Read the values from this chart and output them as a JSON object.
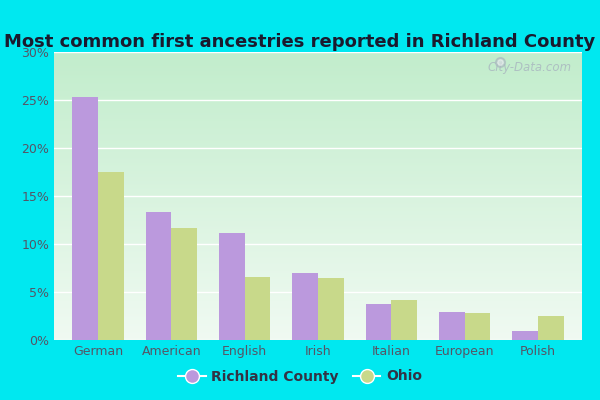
{
  "title": "Most common first ancestries reported in Richland County",
  "categories": [
    "German",
    "American",
    "English",
    "Irish",
    "Italian",
    "European",
    "Polish"
  ],
  "richland_values": [
    25.3,
    13.3,
    11.1,
    7.0,
    3.8,
    2.9,
    0.9
  ],
  "ohio_values": [
    17.5,
    11.7,
    6.6,
    6.5,
    4.2,
    2.8,
    2.5
  ],
  "richland_color": "#bb99dd",
  "ohio_color": "#c8d98a",
  "background_outer": "#00e8f0",
  "background_plot_top": "#edfaf0",
  "background_plot_bottom": "#c8eed8",
  "title_fontsize": 13,
  "title_color": "#1a1a2e",
  "ylim": [
    0,
    30
  ],
  "yticks": [
    0,
    5,
    10,
    15,
    20,
    25,
    30
  ],
  "bar_width": 0.35,
  "legend_richland": "Richland County",
  "legend_ohio": "Ohio",
  "watermark": "City-Data.com",
  "tick_color": "#555566",
  "grid_color": "#dddddd"
}
